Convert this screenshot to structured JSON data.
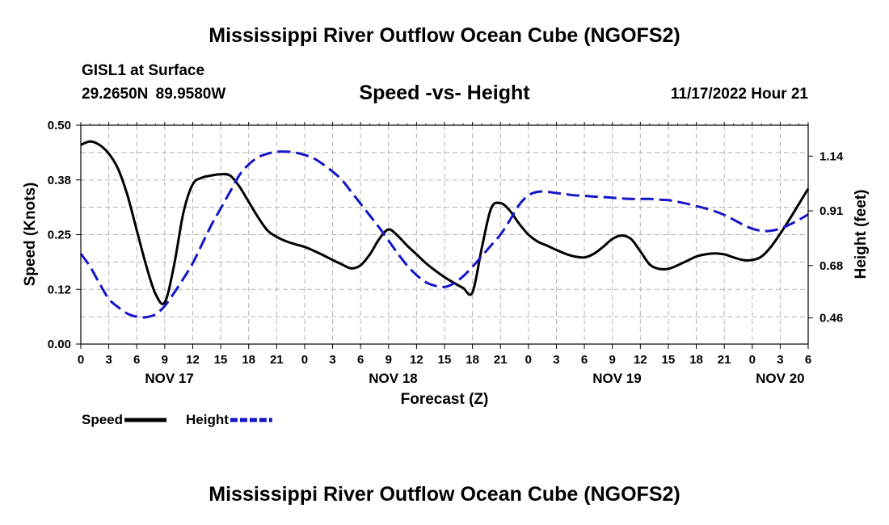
{
  "chart_data": {
    "type": "line",
    "title": "Mississippi River Outflow Ocean Cube (NGOFS2)",
    "station": "GISL1 at Surface",
    "location": "29.2650N  89.9580W",
    "subtitle": "Speed -vs- Height",
    "timestamp": "11/17/2022 Hour 21",
    "xlabel": "Forecast (Z)",
    "ylabel": "Speed (Knots)",
    "ylabel_right": "Height (feet)",
    "x_unit": "hours since 00Z Nov 17",
    "xlim": [
      0,
      78
    ],
    "ylim": [
      0,
      0.5
    ],
    "ylim_right": [
      0.35,
      1.27
    ],
    "x_tick_values": [
      0,
      3,
      6,
      9,
      12,
      15,
      18,
      21,
      24,
      27,
      30,
      33,
      36,
      39,
      42,
      45,
      48,
      51,
      54,
      57,
      60,
      63,
      66,
      69,
      72,
      75,
      78
    ],
    "x_tick_labels": [
      "0",
      "3",
      "6",
      "9",
      "12",
      "15",
      "18",
      "21",
      "0",
      "3",
      "6",
      "9",
      "12",
      "15",
      "18",
      "21",
      "0",
      "3",
      "6",
      "9",
      "12",
      "15",
      "18",
      "21",
      "0",
      "3",
      "6"
    ],
    "y_ticks": [
      "0.00",
      "0.12",
      "0.25",
      "0.38",
      "0.50"
    ],
    "y_tick_values": [
      0,
      0.125,
      0.25,
      0.375,
      0.5
    ],
    "y_ticks_right": [
      "0.46",
      "0.68",
      "0.91",
      "1.14"
    ],
    "y_tick_values_right": [
      0.46,
      0.68,
      0.91,
      1.14
    ],
    "date_labels": [
      {
        "label": "NOV 17",
        "x": 9.5
      },
      {
        "label": "NOV 18",
        "x": 33.5
      },
      {
        "label": "NOV 19",
        "x": 57.5
      },
      {
        "label": "NOV 20",
        "x": 75
      }
    ],
    "series": [
      {
        "name": "Speed",
        "axis": "left",
        "color": "#000000",
        "dash": false,
        "x": [
          0,
          1,
          2,
          3,
          4,
          5,
          6,
          7,
          8,
          9,
          10,
          11,
          12,
          13,
          14,
          15,
          16,
          17,
          18,
          19,
          20,
          21,
          22,
          23,
          24,
          25,
          26,
          27,
          28,
          29,
          30,
          31,
          32,
          33,
          34,
          35,
          36,
          37,
          38,
          39,
          40,
          41,
          42,
          43,
          44,
          45,
          46,
          47,
          48,
          49,
          50,
          51,
          52,
          53,
          54,
          55,
          56,
          57,
          58,
          59,
          60,
          61,
          62,
          63,
          64,
          65,
          66,
          67,
          68,
          69,
          70,
          71,
          72,
          73,
          74,
          75,
          76,
          77,
          78
        ],
        "values": [
          0.455,
          0.463,
          0.455,
          0.435,
          0.4,
          0.34,
          0.26,
          0.18,
          0.115,
          0.095,
          0.18,
          0.3,
          0.365,
          0.38,
          0.385,
          0.388,
          0.385,
          0.36,
          0.325,
          0.29,
          0.26,
          0.245,
          0.235,
          0.228,
          0.222,
          0.213,
          0.203,
          0.192,
          0.182,
          0.173,
          0.18,
          0.205,
          0.24,
          0.262,
          0.247,
          0.225,
          0.205,
          0.185,
          0.168,
          0.153,
          0.14,
          0.128,
          0.118,
          0.22,
          0.31,
          0.322,
          0.305,
          0.275,
          0.25,
          0.234,
          0.225,
          0.215,
          0.206,
          0.2,
          0.198,
          0.206,
          0.222,
          0.24,
          0.248,
          0.24,
          0.212,
          0.182,
          0.172,
          0.172,
          0.18,
          0.19,
          0.2,
          0.205,
          0.207,
          0.205,
          0.198,
          0.192,
          0.192,
          0.2,
          0.222,
          0.252,
          0.285,
          0.32,
          0.355
        ]
      },
      {
        "name": "Height",
        "axis": "right",
        "color": "#1414c8",
        "dash": true,
        "x": [
          0,
          1,
          2,
          3,
          4,
          5,
          6,
          7,
          8,
          9,
          10,
          11,
          12,
          13,
          14,
          15,
          16,
          17,
          18,
          19,
          20,
          21,
          22,
          23,
          24,
          25,
          26,
          27,
          28,
          29,
          30,
          31,
          32,
          33,
          34,
          35,
          36,
          37,
          38,
          39,
          40,
          41,
          42,
          43,
          44,
          45,
          46,
          47,
          48,
          49,
          50,
          51,
          52,
          53,
          54,
          55,
          56,
          57,
          58,
          59,
          60,
          61,
          62,
          63,
          64,
          65,
          66,
          67,
          68,
          69,
          70,
          71,
          72,
          73,
          74,
          75,
          76,
          77,
          78
        ],
        "values": [
          0.73,
          0.675,
          0.605,
          0.54,
          0.505,
          0.478,
          0.465,
          0.463,
          0.475,
          0.51,
          0.565,
          0.625,
          0.69,
          0.77,
          0.85,
          0.92,
          0.99,
          1.06,
          1.105,
          1.135,
          1.15,
          1.158,
          1.159,
          1.155,
          1.145,
          1.13,
          1.105,
          1.075,
          1.04,
          0.99,
          0.94,
          0.89,
          0.84,
          0.785,
          0.73,
          0.68,
          0.64,
          0.61,
          0.595,
          0.59,
          0.605,
          0.635,
          0.675,
          0.72,
          0.765,
          0.81,
          0.87,
          0.935,
          0.975,
          0.99,
          0.99,
          0.985,
          0.98,
          0.975,
          0.973,
          0.97,
          0.968,
          0.965,
          0.962,
          0.96,
          0.96,
          0.96,
          0.957,
          0.955,
          0.948,
          0.94,
          0.93,
          0.92,
          0.908,
          0.893,
          0.873,
          0.852,
          0.835,
          0.826,
          0.826,
          0.835,
          0.852,
          0.872,
          0.895
        ]
      }
    ],
    "legend": [
      {
        "label": "Speed",
        "color": "#000000",
        "dash": false
      },
      {
        "label": "Height",
        "color": "#1414c8",
        "dash": true
      }
    ],
    "legend_position": "bottom-left",
    "grid": true
  },
  "footer_title": "Mississippi River Outflow Ocean Cube (NGOFS2)"
}
